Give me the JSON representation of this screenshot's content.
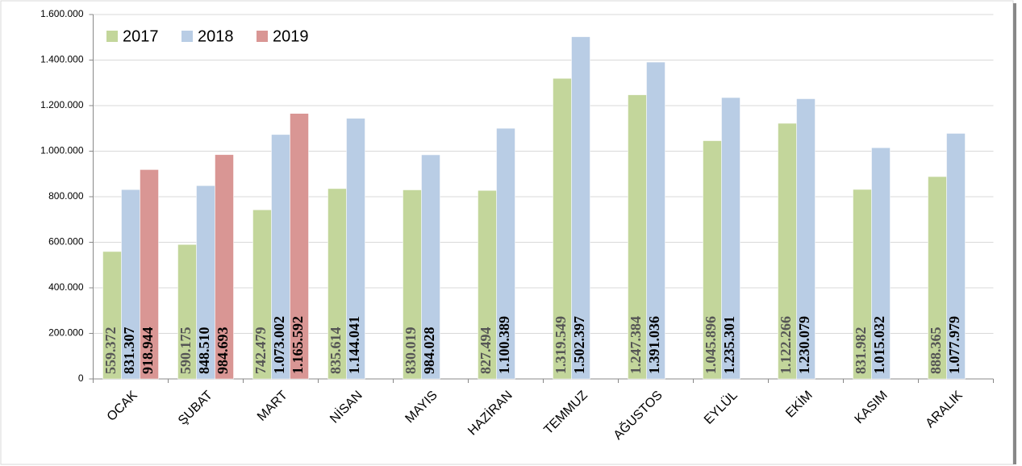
{
  "chart_data": {
    "type": "bar",
    "categories": [
      "OCAK",
      "ŞUBAT",
      "MART",
      "NİSAN",
      "MAYIS",
      "HAZİRAN",
      "TEMMUZ",
      "AĞUSTOS",
      "EYLÜL",
      "EKİM",
      "KASIM",
      "ARALIK"
    ],
    "series": [
      {
        "name": "2017",
        "color": "#c3d69b",
        "values": [
          559372,
          590175,
          742479,
          835614,
          830019,
          827494,
          1319549,
          1247384,
          1045896,
          1122266,
          831982,
          888365
        ],
        "value_labels": [
          "559.372",
          "590.175",
          "742.479",
          "835.614",
          "830.019",
          "827.494",
          "1.319.549",
          "1.247.384",
          "1.045.896",
          "1.122.266",
          "831.982",
          "888.365"
        ]
      },
      {
        "name": "2018",
        "color": "#b9cde5",
        "values": [
          831307,
          848510,
          1073002,
          1144041,
          984028,
          1100389,
          1502397,
          1391036,
          1235301,
          1230079,
          1015032,
          1077979
        ],
        "value_labels": [
          "831.307",
          "848.510",
          "1.073.002",
          "1.144.041",
          "984.028",
          "1.100.389",
          "1.502.397",
          "1.391.036",
          "1.235.301",
          "1.230.079",
          "1.015.032",
          "1.077.979"
        ]
      },
      {
        "name": "2019",
        "color": "#d99694",
        "values": [
          918944,
          984693,
          1165592,
          null,
          null,
          null,
          null,
          null,
          null,
          null,
          null,
          null
        ],
        "value_labels": [
          "918.944",
          "984.693",
          "1.165.592",
          null,
          null,
          null,
          null,
          null,
          null,
          null,
          null,
          null
        ]
      }
    ],
    "ylim": [
      0,
      1600000
    ],
    "yticks": [
      0,
      {
        "value": 200000,
        "label": "200.000"
      },
      {
        "value": 400000,
        "label": "400.000"
      },
      {
        "value": 600000,
        "label": "600.000"
      },
      {
        "value": 800000,
        "label": "800.000"
      },
      {
        "value": 1000000,
        "label": "1.000.000"
      },
      {
        "value": 1200000,
        "label": "1.200.000"
      },
      {
        "value": 1400000,
        "label": "1.400.000"
      },
      {
        "value": 1600000,
        "label": "1.600.000"
      }
    ],
    "grid": true,
    "legend": "top-left"
  }
}
